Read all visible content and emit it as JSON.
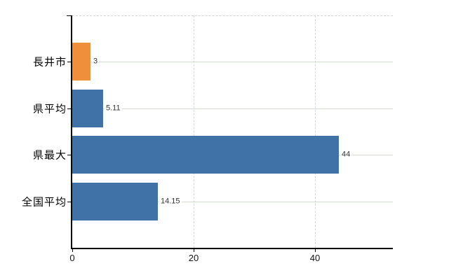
{
  "chart_data": {
    "type": "bar",
    "orientation": "horizontal",
    "title": "",
    "xlabel": "",
    "ylabel": "",
    "categories": [
      "長井市",
      "県平均",
      "県最大",
      "全国平均"
    ],
    "values": [
      3,
      5.11,
      44,
      14.15
    ],
    "value_labels": [
      "3",
      "5.11",
      "44",
      "14.15"
    ],
    "bar_colors": [
      "#ef8e3b",
      "#4072a7",
      "#4072a7",
      "#4072a7"
    ],
    "xticks": [
      0,
      20,
      40
    ],
    "xtick_labels": [
      "0",
      "20",
      "40"
    ],
    "xlim": [
      0,
      52.9
    ],
    "grid": true,
    "legend_position": "none"
  },
  "colors": {
    "accent_orange": "#ef8e3b",
    "accent_blue": "#4072a7",
    "axis": "#000000",
    "hgrid": "#d4dbd2",
    "vgrid": "#d6d6dc"
  }
}
